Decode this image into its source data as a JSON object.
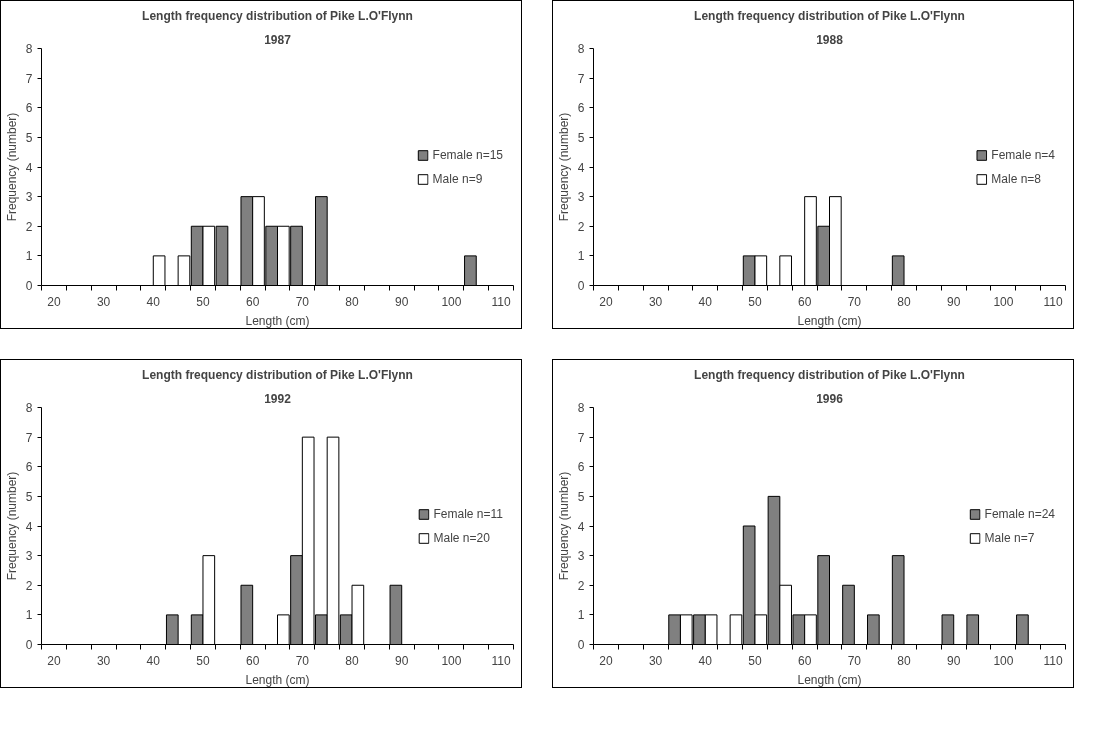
{
  "chart_data": [
    {
      "type": "bar",
      "title": "Length frequency distribution of Pike L.O'Flynn",
      "subtitle": "1987",
      "xlabel": "Length (cm)",
      "ylabel": "Frequency (number)",
      "categories": [
        "20",
        null,
        "30",
        null,
        "40",
        null,
        "50",
        null,
        "60",
        null,
        "70",
        null,
        "80",
        null,
        "90",
        null,
        "100",
        null,
        "110"
      ],
      "series": [
        {
          "name": "Female n=15",
          "color": "#808080",
          "values": [
            0,
            0,
            0,
            0,
            0,
            0,
            2,
            2,
            3,
            2,
            2,
            3,
            0,
            0,
            0,
            0,
            0,
            1,
            0
          ]
        },
        {
          "name": "Male n=9",
          "color": "#ffffff",
          "values": [
            0,
            0,
            0,
            0,
            1,
            1,
            2,
            0,
            3,
            2,
            0,
            0,
            0,
            0,
            0,
            0,
            0,
            0,
            0
          ]
        }
      ],
      "ylim": [
        0,
        8
      ],
      "yticks": [
        0,
        1,
        2,
        3,
        4,
        5,
        6,
        7,
        8
      ],
      "legend": "right",
      "grid": false
    },
    {
      "type": "bar",
      "title": "Length frequency distribution of Pike L.O'Flynn",
      "subtitle": "1988",
      "xlabel": "Length (cm)",
      "ylabel": "Frequency (number)",
      "categories": [
        "20",
        null,
        "30",
        null,
        "40",
        null,
        "50",
        null,
        "60",
        null,
        "70",
        null,
        "80",
        null,
        "90",
        null,
        "100",
        null,
        "110"
      ],
      "series": [
        {
          "name": "Female n=4",
          "color": "#808080",
          "values": [
            0,
            0,
            0,
            0,
            0,
            0,
            1,
            0,
            0,
            2,
            0,
            0,
            1,
            0,
            0,
            0,
            0,
            0,
            0
          ]
        },
        {
          "name": "Male n=8",
          "color": "#ffffff",
          "values": [
            0,
            0,
            0,
            0,
            0,
            0,
            1,
            1,
            3,
            3,
            0,
            0,
            0,
            0,
            0,
            0,
            0,
            0,
            0
          ]
        }
      ],
      "ylim": [
        0,
        8
      ],
      "yticks": [
        0,
        1,
        2,
        3,
        4,
        5,
        6,
        7,
        8
      ],
      "legend": "right",
      "grid": false
    },
    {
      "type": "bar",
      "title": "Length frequency distribution of Pike L.O'Flynn",
      "subtitle": "1992",
      "xlabel": "Length (cm)",
      "ylabel": "Frequency (number)",
      "categories": [
        "20",
        null,
        "30",
        null,
        "40",
        null,
        "50",
        null,
        "60",
        null,
        "70",
        null,
        "80",
        null,
        "90",
        null,
        "100",
        null,
        "110"
      ],
      "series": [
        {
          "name": "Female n=11",
          "color": "#808080",
          "values": [
            0,
            0,
            0,
            0,
            0,
            1,
            1,
            0,
            2,
            0,
            3,
            1,
            1,
            0,
            2,
            0,
            0,
            0,
            0
          ]
        },
        {
          "name": "Male n=20",
          "color": "#ffffff",
          "values": [
            0,
            0,
            0,
            0,
            0,
            0,
            3,
            0,
            0,
            1,
            7,
            7,
            2,
            0,
            0,
            0,
            0,
            0,
            0
          ]
        }
      ],
      "ylim": [
        0,
        8
      ],
      "yticks": [
        0,
        1,
        2,
        3,
        4,
        5,
        6,
        7,
        8
      ],
      "legend": "right",
      "grid": false
    },
    {
      "type": "bar",
      "title": "Length frequency distribution of Pike L.O'Flynn",
      "subtitle": "1996",
      "xlabel": "Length (cm)",
      "ylabel": "Frequency (number)",
      "categories": [
        "20",
        null,
        "30",
        null,
        "40",
        null,
        "50",
        null,
        "60",
        null,
        "70",
        null,
        "80",
        null,
        "90",
        null,
        "100",
        null,
        "110"
      ],
      "series": [
        {
          "name": "Female n=24",
          "color": "#808080",
          "values": [
            0,
            0,
            0,
            1,
            1,
            0,
            4,
            5,
            1,
            3,
            2,
            1,
            3,
            0,
            1,
            1,
            0,
            1,
            0
          ]
        },
        {
          "name": "Male n=7",
          "color": "#ffffff",
          "values": [
            0,
            0,
            0,
            1,
            1,
            1,
            1,
            2,
            1,
            0,
            0,
            0,
            0,
            0,
            0,
            0,
            0,
            0,
            0
          ]
        }
      ],
      "ylim": [
        0,
        8
      ],
      "yticks": [
        0,
        1,
        2,
        3,
        4,
        5,
        6,
        7,
        8
      ],
      "legend": "right",
      "grid": false
    }
  ]
}
